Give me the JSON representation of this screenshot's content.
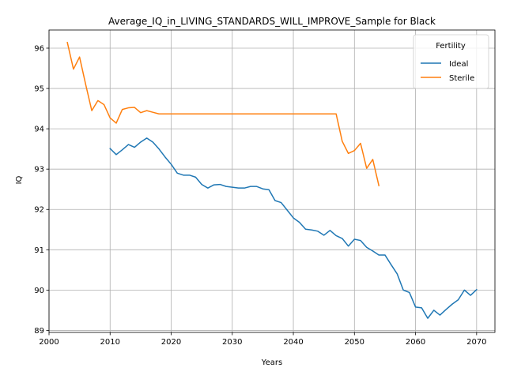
{
  "chart_data": {
    "type": "line",
    "title": "Average_IQ_in_LIVING_STANDARDS_WILL_IMPROVE_Sample for Black",
    "xlabel": "Years",
    "ylabel": "IQ",
    "xlim": [
      2000,
      2073
    ],
    "ylim": [
      88.95,
      96.45
    ],
    "xticks": [
      2000,
      2010,
      2020,
      2030,
      2040,
      2050,
      2060,
      2070
    ],
    "yticks": [
      89,
      90,
      91,
      92,
      93,
      94,
      95,
      96
    ],
    "grid": true,
    "legend": {
      "title": "Fertility",
      "position": "top-right"
    },
    "series": [
      {
        "name": "Ideal",
        "color": "#1f77b4",
        "x": [
          2010,
          2011,
          2012,
          2013,
          2014,
          2015,
          2016,
          2017,
          2018,
          2019,
          2020,
          2021,
          2022,
          2023,
          2024,
          2025,
          2026,
          2027,
          2028,
          2029,
          2030,
          2031,
          2032,
          2033,
          2034,
          2035,
          2036,
          2037,
          2038,
          2039,
          2040,
          2041,
          2042,
          2043,
          2044,
          2045,
          2046,
          2047,
          2048,
          2049,
          2050,
          2051,
          2052,
          2053,
          2054,
          2055,
          2056,
          2057,
          2058,
          2059,
          2060,
          2061,
          2062,
          2063,
          2064,
          2065,
          2066,
          2067,
          2068,
          2069,
          2070
        ],
        "y": [
          93.51,
          93.36,
          93.48,
          93.61,
          93.54,
          93.67,
          93.77,
          93.67,
          93.5,
          93.3,
          93.12,
          92.9,
          92.85,
          92.85,
          92.8,
          92.62,
          92.53,
          92.61,
          92.62,
          92.57,
          92.55,
          92.53,
          92.53,
          92.57,
          92.57,
          92.51,
          92.49,
          92.22,
          92.17,
          91.98,
          91.79,
          91.68,
          91.51,
          91.49,
          91.46,
          91.36,
          91.48,
          91.35,
          91.28,
          91.09,
          91.26,
          91.23,
          91.06,
          90.97,
          90.87,
          90.87,
          90.63,
          90.4,
          90,
          89.94,
          89.58,
          89.56,
          89.3,
          89.5,
          89.38,
          89.52,
          89.65,
          89.76,
          90,
          89.87,
          90.01
        ]
      },
      {
        "name": "Sterile",
        "color": "#ff7f0e",
        "x": [
          2003,
          2004,
          2005,
          2006,
          2007,
          2008,
          2009,
          2010,
          2011,
          2012,
          2013,
          2014,
          2015,
          2016,
          2017,
          2018,
          2019,
          2020,
          2021,
          2022,
          2023,
          2024,
          2025,
          2026,
          2027,
          2028,
          2029,
          2030,
          2031,
          2032,
          2033,
          2034,
          2035,
          2036,
          2037,
          2038,
          2039,
          2040,
          2041,
          2042,
          2043,
          2044,
          2045,
          2046,
          2047,
          2048,
          2049,
          2050,
          2051,
          2052,
          2053,
          2054
        ],
        "y": [
          96.14,
          95.48,
          95.78,
          95.1,
          94.45,
          94.7,
          94.6,
          94.27,
          94.14,
          94.48,
          94.52,
          94.53,
          94.4,
          94.45,
          94.41,
          94.37,
          94.37,
          94.37,
          94.37,
          94.37,
          94.37,
          94.37,
          94.37,
          94.37,
          94.37,
          94.37,
          94.37,
          94.37,
          94.37,
          94.37,
          94.37,
          94.37,
          94.37,
          94.37,
          94.37,
          94.37,
          94.37,
          94.37,
          94.37,
          94.37,
          94.37,
          94.37,
          94.37,
          94.37,
          94.37,
          93.69,
          93.39,
          93.46,
          93.64,
          93.02,
          93.24,
          92.59
        ]
      }
    ]
  }
}
